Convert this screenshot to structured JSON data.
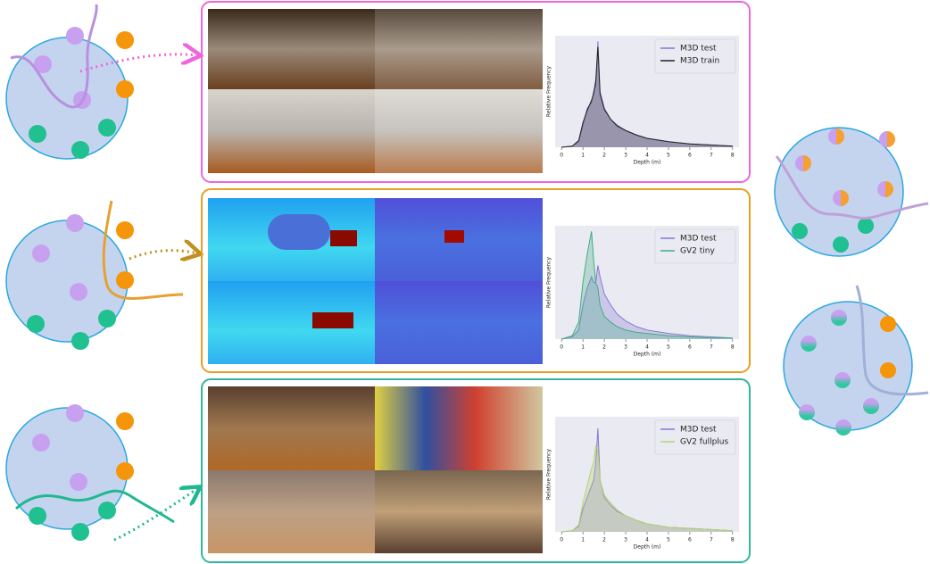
{
  "chart_data": [
    {
      "type": "area",
      "xlabel": "Depth (m)",
      "ylabel": "Relative Frequency",
      "xlim": [
        -0.3,
        8.3
      ],
      "ylim": [
        0,
        1
      ],
      "xticks": [
        0,
        1,
        2,
        3,
        4,
        5,
        6,
        7,
        8
      ],
      "legend": "upper right",
      "x": [
        0,
        0.5,
        0.8,
        1.0,
        1.2,
        1.4,
        1.5,
        1.6,
        1.7,
        1.8,
        2.0,
        2.3,
        2.6,
        3,
        3.5,
        4,
        5,
        6,
        7,
        8
      ],
      "series": [
        {
          "name": "M3D test",
          "color": "#8878d0",
          "values": [
            0,
            0.01,
            0.05,
            0.2,
            0.35,
            0.4,
            0.5,
            0.55,
            0.95,
            0.5,
            0.35,
            0.25,
            0.2,
            0.15,
            0.11,
            0.08,
            0.05,
            0.03,
            0.02,
            0.01
          ]
        },
        {
          "name": "M3D train",
          "color": "#222222",
          "values": [
            0,
            0.01,
            0.06,
            0.22,
            0.33,
            0.42,
            0.48,
            0.6,
            0.9,
            0.48,
            0.34,
            0.25,
            0.19,
            0.15,
            0.11,
            0.08,
            0.05,
            0.03,
            0.02,
            0.01
          ]
        }
      ]
    },
    {
      "type": "area",
      "xlabel": "Depth (m)",
      "ylabel": "Relative Frequency",
      "xlim": [
        -0.3,
        8.3
      ],
      "ylim": [
        0,
        1
      ],
      "xticks": [
        0,
        1,
        2,
        3,
        4,
        5,
        6,
        7,
        8
      ],
      "legend": "upper right",
      "x": [
        0,
        0.5,
        0.8,
        1.0,
        1.2,
        1.4,
        1.5,
        1.6,
        1.7,
        1.8,
        2.0,
        2.3,
        2.6,
        3,
        3.5,
        4,
        5,
        6,
        7,
        8
      ],
      "series": [
        {
          "name": "M3D test",
          "color": "#8878d0",
          "values": [
            0,
            0.02,
            0.08,
            0.3,
            0.45,
            0.55,
            0.5,
            0.5,
            0.65,
            0.55,
            0.4,
            0.3,
            0.22,
            0.16,
            0.11,
            0.08,
            0.05,
            0.03,
            0.02,
            0.01
          ]
        },
        {
          "name": "GV2 tiny",
          "color": "#3fae80",
          "values": [
            0,
            0.03,
            0.15,
            0.5,
            0.75,
            0.95,
            0.7,
            0.5,
            0.45,
            0.3,
            0.2,
            0.15,
            0.11,
            0.08,
            0.06,
            0.05,
            0.03,
            0.02,
            0.01,
            0.01
          ]
        }
      ]
    },
    {
      "type": "area",
      "xlabel": "Depth (m)",
      "ylabel": "Relative Frequency",
      "xlim": [
        -0.3,
        8.3
      ],
      "ylim": [
        0,
        1
      ],
      "xticks": [
        0,
        1,
        2,
        3,
        4,
        5,
        6,
        7,
        8
      ],
      "legend": "upper right",
      "x": [
        0,
        0.5,
        0.8,
        1.0,
        1.2,
        1.4,
        1.5,
        1.6,
        1.7,
        1.8,
        2.0,
        2.3,
        2.6,
        3,
        3.5,
        4,
        5,
        6,
        7,
        8
      ],
      "series": [
        {
          "name": "M3D test",
          "color": "#8878d0",
          "values": [
            0,
            0.01,
            0.05,
            0.2,
            0.3,
            0.4,
            0.45,
            0.6,
            0.9,
            0.45,
            0.3,
            0.23,
            0.18,
            0.14,
            0.1,
            0.07,
            0.04,
            0.03,
            0.02,
            0.01
          ]
        },
        {
          "name": "GV2 fullplus",
          "color": "#b5d46a",
          "values": [
            0,
            0.01,
            0.06,
            0.25,
            0.4,
            0.55,
            0.6,
            0.75,
            0.7,
            0.45,
            0.32,
            0.25,
            0.19,
            0.14,
            0.1,
            0.07,
            0.04,
            0.03,
            0.02,
            0.01
          ]
        }
      ]
    }
  ]
}
